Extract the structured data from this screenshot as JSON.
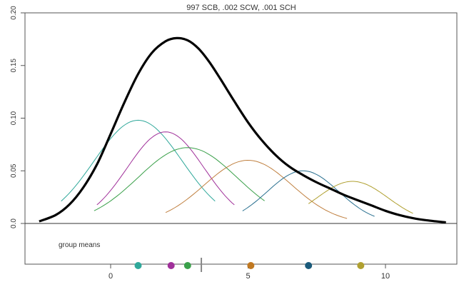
{
  "chart_data": {
    "type": "line",
    "title": "997 SCB, .002 SCW, .001 SCH",
    "xlabel": "",
    "ylabel": "",
    "xlim": [
      -3.2,
      12.8
    ],
    "ylim": [
      -0.04,
      0.2
    ],
    "x_ticks": [
      0,
      5,
      10
    ],
    "x_tick_labels": [
      "0",
      "5",
      "10"
    ],
    "y_ticks": [
      0.0,
      0.05,
      0.1,
      0.15,
      0.2
    ],
    "y_tick_labels": [
      "0.0",
      "0.05",
      "0.10",
      "0.15",
      "0.20"
    ],
    "grid": false,
    "overall_curve": {
      "color": "#000000",
      "points": [
        [
          -2.6,
          0.002
        ],
        [
          -2.0,
          0.008
        ],
        [
          -1.5,
          0.018
        ],
        [
          -1.0,
          0.034
        ],
        [
          -0.5,
          0.056
        ],
        [
          0.0,
          0.085
        ],
        [
          0.5,
          0.115
        ],
        [
          1.0,
          0.142
        ],
        [
          1.5,
          0.162
        ],
        [
          2.0,
          0.173
        ],
        [
          2.4,
          0.176
        ],
        [
          2.8,
          0.174
        ],
        [
          3.2,
          0.166
        ],
        [
          3.6,
          0.153
        ],
        [
          4.0,
          0.137
        ],
        [
          4.5,
          0.116
        ],
        [
          5.0,
          0.096
        ],
        [
          5.5,
          0.079
        ],
        [
          6.0,
          0.065
        ],
        [
          6.5,
          0.054
        ],
        [
          7.0,
          0.046
        ],
        [
          7.5,
          0.039
        ],
        [
          8.0,
          0.033
        ],
        [
          8.5,
          0.027
        ],
        [
          9.0,
          0.022
        ],
        [
          9.5,
          0.017
        ],
        [
          10.0,
          0.012
        ],
        [
          10.5,
          0.008
        ],
        [
          11.0,
          0.005
        ],
        [
          11.5,
          0.003
        ],
        [
          12.2,
          0.001
        ]
      ]
    },
    "component_curves": [
      {
        "color": "#2fa89a",
        "mean": 1.0,
        "sd": 1.6,
        "peak": 0.098,
        "x_range": [
          -1.8,
          3.8
        ]
      },
      {
        "color": "#a0309a",
        "mean": 2.0,
        "sd": 1.4,
        "peak": 0.087,
        "x_range": [
          -0.5,
          4.5
        ]
      },
      {
        "color": "#3aa04a",
        "mean": 2.8,
        "sd": 1.8,
        "peak": 0.072,
        "x_range": [
          -0.6,
          5.6
        ]
      },
      {
        "color": "#c08040",
        "mean": 5.0,
        "sd": 1.6,
        "peak": 0.06,
        "x_range": [
          2.0,
          8.6
        ]
      },
      {
        "color": "#2a7090",
        "mean": 7.0,
        "sd": 1.3,
        "peak": 0.05,
        "x_range": [
          4.8,
          9.6
        ]
      },
      {
        "color": "#b0a030",
        "mean": 8.8,
        "sd": 1.3,
        "peak": 0.04,
        "x_range": [
          7.2,
          11.0
        ]
      }
    ],
    "group_means_label": "group means",
    "group_means_y": -0.04,
    "group_means": [
      {
        "x": 1.0,
        "color": "#2fa89a",
        "marker": "dot"
      },
      {
        "x": 2.2,
        "color": "#a0309a",
        "marker": "dot"
      },
      {
        "x": 2.8,
        "color": "#3aa04a",
        "marker": "dot"
      },
      {
        "x": 3.3,
        "color": "#888888",
        "marker": "bar"
      },
      {
        "x": 5.1,
        "color": "#c07820",
        "marker": "dot"
      },
      {
        "x": 7.2,
        "color": "#1a5a7a",
        "marker": "dot"
      },
      {
        "x": 9.1,
        "color": "#b0a030",
        "marker": "dot"
      }
    ]
  }
}
